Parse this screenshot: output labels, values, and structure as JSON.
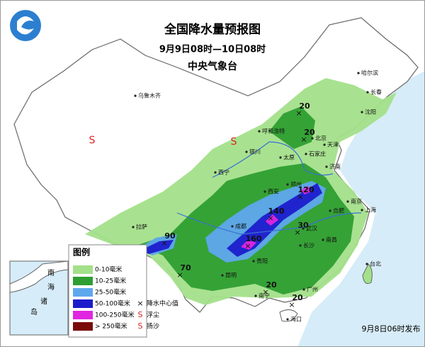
{
  "header": {
    "title": "全国降水量预报图",
    "period": "9月9日08时—10日08时",
    "issuer": "中央气象台"
  },
  "legend": {
    "title": "图例",
    "items": [
      {
        "label": "0-10毫米",
        "color": "#a3e08a"
      },
      {
        "label": "10-25毫米",
        "color": "#2e9e32"
      },
      {
        "label": "25-50毫米",
        "color": "#5fa8ee"
      },
      {
        "label": "50-100毫米",
        "color": "#1c1ccc"
      },
      {
        "label": "100-250毫米",
        "color": "#e026e0"
      },
      {
        "label": "> 250毫米",
        "color": "#7a0a0a"
      }
    ],
    "symbols": [
      {
        "label": "降水中心值"
      },
      {
        "label": "浮尘"
      },
      {
        "label": "扬沙"
      }
    ]
  },
  "cities": [
    "乌鲁木齐",
    "拉萨",
    "西宁",
    "银川",
    "呼和浩特",
    "太原",
    "石家庄",
    "北京",
    "天津",
    "沈阳",
    "长春",
    "哈尔滨",
    "济南",
    "郑州",
    "西安",
    "成都",
    "合肥",
    "南京",
    "上海",
    "武汉",
    "长沙",
    "南昌",
    "贵阳",
    "昆明",
    "南宁",
    "广州",
    "海口",
    "台北"
  ],
  "rain_centers": [
    "20",
    "20",
    "120",
    "140",
    "160",
    "30",
    "90",
    "70",
    "20",
    "20"
  ],
  "inset": [
    "南",
    "海",
    "诸",
    "岛"
  ],
  "footer": "9月8日06时发布"
}
